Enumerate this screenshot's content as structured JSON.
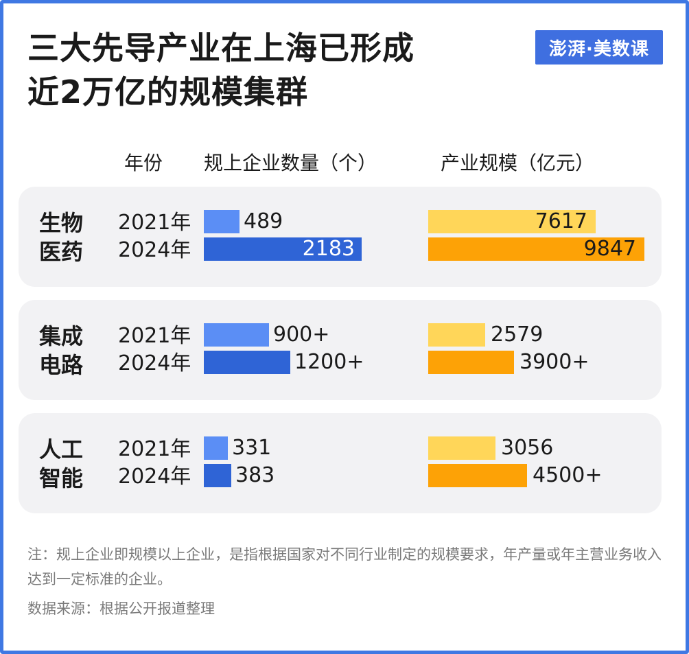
{
  "title_line1": "三大先导产业在上海已形成",
  "title_line2": "近2万亿的规模集群",
  "logo_text": "澎湃·美数课",
  "headers": {
    "year": "年份",
    "enterprise_count": "规上企业数量（个）",
    "industry_scale": "产业规模（亿元）"
  },
  "colors": {
    "count_2021": "#5b8ef5",
    "count_2024": "#2f64d6",
    "scale_2021": "#ffd659",
    "scale_2024": "#fda206",
    "panel_bg": "#f2f2f4",
    "frame": "#3f78e3"
  },
  "chart_data": {
    "type": "bar",
    "orientation": "horizontal",
    "title": "三大先导产业在上海已形成近2万亿的规模集群",
    "groups": [
      {
        "name_line1": "生物",
        "name_line2": "医药",
        "rows": [
          {
            "year": "2021年",
            "count": 489,
            "count_label": "489",
            "scale": 7617,
            "scale_label": "7617"
          },
          {
            "year": "2024年",
            "count": 2183,
            "count_label": "2183",
            "scale": 9847,
            "scale_label": "9847"
          }
        ]
      },
      {
        "name_line1": "集成",
        "name_line2": "电路",
        "rows": [
          {
            "year": "2021年",
            "count": 900,
            "count_label": "900+",
            "scale": 2579,
            "scale_label": "2579"
          },
          {
            "year": "2024年",
            "count": 1200,
            "count_label": "1200+",
            "scale": 3900,
            "scale_label": "3900+"
          }
        ]
      },
      {
        "name_line1": "人工",
        "name_line2": "智能",
        "rows": [
          {
            "year": "2021年",
            "count": 331,
            "count_label": "331",
            "scale": 3056,
            "scale_label": "3056"
          },
          {
            "year": "2024年",
            "count": 383,
            "count_label": "383",
            "scale": 4500,
            "scale_label": "4500+"
          }
        ]
      }
    ]
  },
  "note": "注：规上企业即规模以上企业，是指根据国家对不同行业制定的规模要求，年产量或年主营业务收入达到一定标准的企业。",
  "source": "数据来源：根据公开报道整理"
}
